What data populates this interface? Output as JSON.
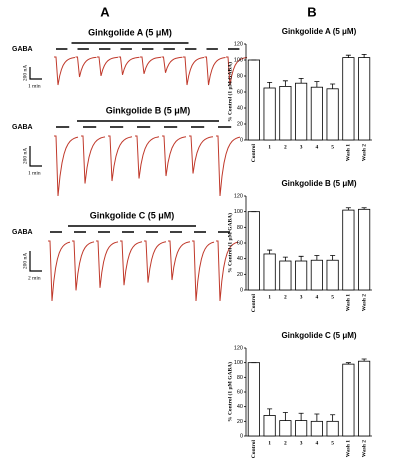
{
  "panel_a": {
    "label": "A",
    "blocks": [
      {
        "title": "Ginkgolide A (5 μM)",
        "stimulus": "GABA",
        "scale_y": "200 nA",
        "scale_x": "1 min"
      },
      {
        "title": "Ginkgolide B (5 μM)",
        "stimulus": "GABA",
        "scale_y": "200 nA",
        "scale_x": "1 min"
      },
      {
        "title": "Ginkgolide C (5 μM)",
        "stimulus": "GABA",
        "scale_y": "200 nA",
        "scale_x": "2 min"
      }
    ]
  },
  "panel_b": {
    "label": "B"
  },
  "chart_data": [
    {
      "type": "bar",
      "title": "Ginkgolide A (5 μM)",
      "ylabel": "% Control (1 μM GABA)",
      "categories": [
        "Control",
        "1",
        "2",
        "3",
        "4",
        "5",
        "Wash 1",
        "Wash 2"
      ],
      "values": [
        100,
        65,
        67,
        71,
        66,
        64,
        103,
        103
      ],
      "errors": [
        0,
        7,
        7,
        6,
        7,
        6,
        3,
        4
      ],
      "color": "#ffffff",
      "ylim": [
        0,
        120
      ],
      "yticks": [
        0,
        20,
        40,
        60,
        80,
        100,
        120
      ]
    },
    {
      "type": "bar",
      "title": "Ginkgolide B (5 μM)",
      "ylabel": "% Control (1 μM GABA)",
      "categories": [
        "Control",
        "1",
        "2",
        "3",
        "4",
        "5",
        "Wash 1",
        "Wash 2"
      ],
      "values": [
        100,
        46,
        37,
        37,
        38,
        38,
        102,
        103
      ],
      "errors": [
        0,
        5,
        5,
        6,
        6,
        6,
        3,
        2
      ],
      "color": "#ffffff",
      "ylim": [
        0,
        120
      ],
      "yticks": [
        0,
        20,
        40,
        60,
        80,
        100,
        120
      ]
    },
    {
      "type": "bar",
      "title": "Ginkgolide C (5 μM)",
      "ylabel": "% Control (1 μM GABA)",
      "categories": [
        "Control",
        "1",
        "2",
        "3",
        "4",
        "5",
        "Wash 1",
        "Wash 2"
      ],
      "values": [
        100,
        28,
        21,
        21,
        20,
        20,
        98,
        102
      ],
      "errors": [
        0,
        9,
        11,
        10,
        10,
        9,
        2,
        3
      ],
      "color": "#ffffff",
      "ylim": [
        0,
        120
      ],
      "yticks": [
        0,
        20,
        40,
        60,
        80,
        100,
        120
      ]
    }
  ]
}
